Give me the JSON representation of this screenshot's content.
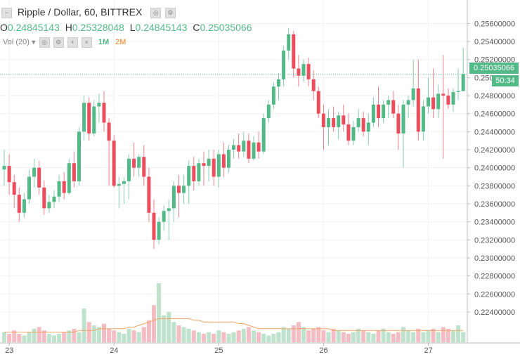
{
  "header": {
    "collapse_icon": "square-minus-icon",
    "title": "Ripple / Dollar, 60, BITTREX",
    "ohlc": [
      {
        "key": "O",
        "value": "0.24845143"
      },
      {
        "key": "H",
        "value": "0.25328048"
      },
      {
        "key": "L",
        "value": "0.24845143"
      },
      {
        "key": "C",
        "value": "0.25035066"
      }
    ],
    "volume_label": "Vol (20)",
    "buttons": {
      "interval1": "1M",
      "interval2": "2M"
    }
  },
  "last_price": {
    "value": "0.25035066",
    "countdown": "50:34",
    "color": "#53b987"
  },
  "colors": {
    "up": "#53b987",
    "down": "#eb4d5c",
    "vol_up": "#bfe2cd",
    "vol_down": "#f4bcc3",
    "ma": "#f0a35e",
    "grid": "#eef0f3"
  },
  "chart_data": {
    "type": "candlestick",
    "title": "Ripple / Dollar, 60, BITTREX",
    "y_ticks": [
      "0.25600000",
      "0.25400000",
      "0.25200000",
      "0.25000000",
      "0.24800000",
      "0.24600000",
      "0.24400000",
      "0.24200000",
      "0.24000000",
      "0.23800000",
      "0.23600000",
      "0.23400000",
      "0.23200000",
      "0.23000000",
      "0.22800000",
      "0.22600000",
      "0.22400000"
    ],
    "ylim": [
      0.2222,
      0.2572
    ],
    "x_ticks": [
      {
        "label": "23",
        "index": 1
      },
      {
        "label": "24",
        "index": 22
      },
      {
        "label": "25",
        "index": 43
      },
      {
        "label": "26",
        "index": 64
      },
      {
        "label": "27",
        "index": 85
      }
    ],
    "candles": [
      [
        0.2398,
        0.242,
        0.238,
        0.2402
      ],
      [
        0.2402,
        0.2415,
        0.237,
        0.2384
      ],
      [
        0.2384,
        0.2392,
        0.2355,
        0.237
      ],
      [
        0.237,
        0.2378,
        0.234,
        0.235
      ],
      [
        0.235,
        0.2372,
        0.2345,
        0.2365
      ],
      [
        0.2365,
        0.2398,
        0.236,
        0.239
      ],
      [
        0.239,
        0.241,
        0.2378,
        0.24
      ],
      [
        0.24,
        0.2408,
        0.237,
        0.2378
      ],
      [
        0.2378,
        0.2386,
        0.2348,
        0.2355
      ],
      [
        0.2355,
        0.237,
        0.235,
        0.2362
      ],
      [
        0.2362,
        0.2375,
        0.2355,
        0.2368
      ],
      [
        0.2368,
        0.2392,
        0.2362,
        0.2385
      ],
      [
        0.2385,
        0.2395,
        0.2365,
        0.2372
      ],
      [
        0.2372,
        0.241,
        0.237,
        0.2405
      ],
      [
        0.2405,
        0.2418,
        0.2378,
        0.2385
      ],
      [
        0.2385,
        0.2445,
        0.238,
        0.244
      ],
      [
        0.244,
        0.248,
        0.243,
        0.2472
      ],
      [
        0.2472,
        0.2478,
        0.243,
        0.2438
      ],
      [
        0.2438,
        0.2475,
        0.2435,
        0.2468
      ],
      [
        0.2468,
        0.2482,
        0.245,
        0.2472
      ],
      [
        0.2472,
        0.2485,
        0.244,
        0.245
      ],
      [
        0.245,
        0.2455,
        0.238,
        0.243
      ],
      [
        0.243,
        0.2436,
        0.2378,
        0.238
      ],
      [
        0.238,
        0.239,
        0.2355,
        0.2382
      ],
      [
        0.2382,
        0.239,
        0.236,
        0.2385
      ],
      [
        0.2385,
        0.2415,
        0.2365,
        0.241
      ],
      [
        0.241,
        0.2428,
        0.239,
        0.24
      ],
      [
        0.24,
        0.2415,
        0.239,
        0.2412
      ],
      [
        0.2412,
        0.2425,
        0.238,
        0.239
      ],
      [
        0.239,
        0.24,
        0.234,
        0.235
      ],
      [
        0.235,
        0.2365,
        0.231,
        0.232
      ],
      [
        0.232,
        0.2345,
        0.2315,
        0.234
      ],
      [
        0.234,
        0.2358,
        0.233,
        0.2352
      ],
      [
        0.2352,
        0.2365,
        0.232,
        0.2355
      ],
      [
        0.2355,
        0.2385,
        0.234,
        0.238
      ],
      [
        0.238,
        0.2392,
        0.2345,
        0.2372
      ],
      [
        0.2372,
        0.2392,
        0.236,
        0.238
      ],
      [
        0.238,
        0.2408,
        0.236,
        0.2402
      ],
      [
        0.2402,
        0.2412,
        0.2375,
        0.2385
      ],
      [
        0.2385,
        0.241,
        0.238,
        0.2405
      ],
      [
        0.2405,
        0.2418,
        0.238,
        0.2402
      ],
      [
        0.2402,
        0.242,
        0.2385,
        0.241
      ],
      [
        0.241,
        0.242,
        0.238,
        0.239
      ],
      [
        0.239,
        0.242,
        0.2378,
        0.2415
      ],
      [
        0.2415,
        0.2428,
        0.239,
        0.24
      ],
      [
        0.24,
        0.2425,
        0.2395,
        0.242
      ],
      [
        0.242,
        0.2432,
        0.241,
        0.2425
      ],
      [
        0.2425,
        0.2438,
        0.241,
        0.2418
      ],
      [
        0.2418,
        0.244,
        0.2412,
        0.243
      ],
      [
        0.243,
        0.2438,
        0.2405,
        0.241
      ],
      [
        0.241,
        0.2435,
        0.2408,
        0.2428
      ],
      [
        0.2428,
        0.244,
        0.241,
        0.2418
      ],
      [
        0.2418,
        0.246,
        0.2415,
        0.2455
      ],
      [
        0.2455,
        0.2475,
        0.245,
        0.247
      ],
      [
        0.247,
        0.2495,
        0.2465,
        0.249
      ],
      [
        0.249,
        0.2505,
        0.2475,
        0.2498
      ],
      [
        0.2498,
        0.2535,
        0.249,
        0.253
      ],
      [
        0.253,
        0.2555,
        0.252,
        0.2548
      ],
      [
        0.2548,
        0.2552,
        0.25,
        0.251
      ],
      [
        0.251,
        0.2525,
        0.249,
        0.2502
      ],
      [
        0.2502,
        0.252,
        0.2495,
        0.2515
      ],
      [
        0.2515,
        0.2522,
        0.249,
        0.2498
      ],
      [
        0.2498,
        0.2508,
        0.2475,
        0.2485
      ],
      [
        0.2485,
        0.249,
        0.2455,
        0.246
      ],
      [
        0.246,
        0.247,
        0.242,
        0.2445
      ],
      [
        0.2445,
        0.2465,
        0.2425,
        0.2455
      ],
      [
        0.2455,
        0.2468,
        0.244,
        0.2445
      ],
      [
        0.2445,
        0.2462,
        0.2432,
        0.2458
      ],
      [
        0.2458,
        0.247,
        0.244,
        0.2448
      ],
      [
        0.2448,
        0.246,
        0.2425,
        0.243
      ],
      [
        0.243,
        0.2452,
        0.2425,
        0.2445
      ],
      [
        0.2445,
        0.2465,
        0.244,
        0.2455
      ],
      [
        0.2455,
        0.2462,
        0.2435,
        0.244
      ],
      [
        0.244,
        0.246,
        0.2425,
        0.245
      ],
      [
        0.245,
        0.2478,
        0.2445,
        0.247
      ],
      [
        0.247,
        0.249,
        0.2445,
        0.2455
      ],
      [
        0.2455,
        0.2475,
        0.245,
        0.247
      ],
      [
        0.247,
        0.248,
        0.2455,
        0.2475
      ],
      [
        0.2475,
        0.2485,
        0.2455,
        0.246
      ],
      [
        0.246,
        0.247,
        0.242,
        0.2438
      ],
      [
        0.2438,
        0.2475,
        0.24,
        0.247
      ],
      [
        0.247,
        0.248,
        0.2455,
        0.2475
      ],
      [
        0.2475,
        0.252,
        0.2468,
        0.2488
      ],
      [
        0.2488,
        0.252,
        0.243,
        0.244
      ],
      [
        0.244,
        0.2475,
        0.243,
        0.2468
      ],
      [
        0.2468,
        0.25,
        0.246,
        0.2478
      ],
      [
        0.2478,
        0.251,
        0.2455,
        0.2465
      ],
      [
        0.2465,
        0.2492,
        0.2455,
        0.2482
      ],
      [
        0.2482,
        0.2525,
        0.241,
        0.248
      ],
      [
        0.248,
        0.2488,
        0.2465,
        0.247
      ],
      [
        0.247,
        0.2488,
        0.2462,
        0.2484
      ],
      [
        0.2484,
        0.251,
        0.2475,
        0.2485
      ],
      [
        0.2485,
        0.2533,
        0.2485,
        0.2504
      ]
    ],
    "volume": [
      6,
      5,
      7,
      5,
      4,
      6,
      8,
      9,
      7,
      5,
      4,
      5,
      6,
      7,
      8,
      6,
      20,
      12,
      10,
      9,
      11,
      8,
      7,
      6,
      5,
      8,
      7,
      6,
      9,
      13,
      22,
      35,
      16,
      18,
      12,
      10,
      9,
      8,
      7,
      6,
      5,
      6,
      5,
      7,
      6,
      5,
      6,
      7,
      8,
      9,
      7,
      6,
      5,
      4,
      5,
      6,
      9,
      8,
      10,
      12,
      9,
      7,
      8,
      9,
      7,
      6,
      8,
      7,
      6,
      5,
      6,
      8,
      7,
      6,
      5,
      7,
      8,
      6,
      5,
      6,
      9,
      7,
      6,
      8,
      6,
      7,
      8,
      6,
      9,
      8,
      7,
      10,
      6
    ],
    "volume_ma": [
      6,
      6,
      6,
      6,
      6,
      6,
      6,
      6,
      6,
      6,
      6,
      6,
      6,
      6,
      6,
      7,
      7,
      7,
      7,
      8,
      8,
      8,
      8,
      8,
      8,
      9,
      9,
      10,
      11,
      12,
      13,
      14,
      14,
      14,
      14,
      14,
      14,
      14,
      13,
      13,
      12,
      12,
      12,
      12,
      12,
      12,
      12,
      11,
      11,
      10,
      9,
      8,
      8,
      8,
      8,
      8,
      8,
      8,
      8,
      8,
      8,
      8,
      8,
      8,
      8,
      8,
      7,
      7,
      7,
      7,
      7,
      7,
      7,
      7,
      7,
      7,
      7,
      7,
      7,
      7,
      7,
      7,
      7,
      7,
      7,
      7,
      7,
      7,
      7,
      7,
      7,
      7,
      7
    ]
  }
}
